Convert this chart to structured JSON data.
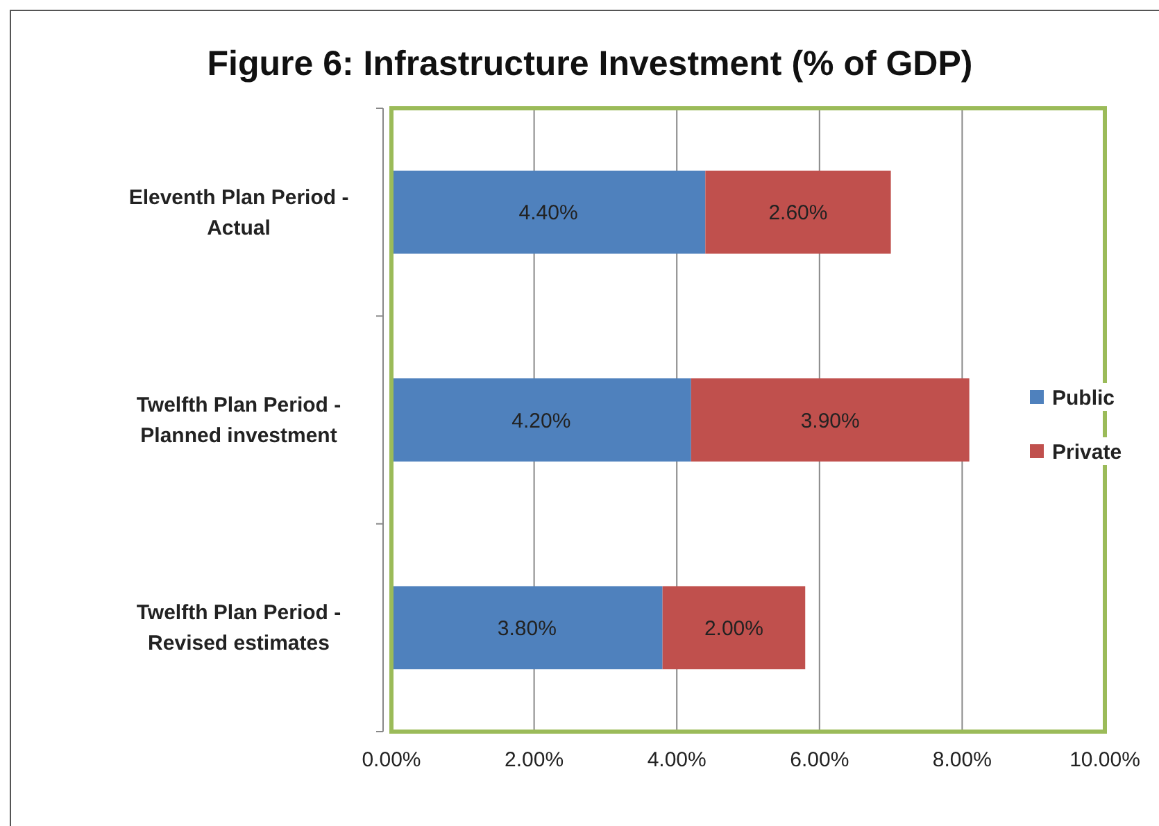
{
  "chart_data": {
    "type": "bar",
    "orientation": "horizontal",
    "stacked": true,
    "title": "Figure 6: Infrastructure  Investment (% of GDP)",
    "categories": [
      "Eleventh Plan Period - Actual",
      "Twelfth Plan Period - Planned investment",
      "Twelfth Plan Period - Revised estimates"
    ],
    "series": [
      {
        "name": "Public",
        "color": "#4f81bd",
        "values": [
          4.4,
          4.2,
          3.8
        ],
        "value_labels": [
          "4.40%",
          "4.20%",
          "3.80%"
        ]
      },
      {
        "name": "Private",
        "color": "#c0504d",
        "values": [
          2.6,
          3.9,
          2.0
        ],
        "value_labels": [
          "2.60%",
          "3.90%",
          "2.00%"
        ]
      }
    ],
    "xlim": [
      0,
      10
    ],
    "xticks": [
      {
        "value": 0,
        "label": "0.00%"
      },
      {
        "value": 2,
        "label": "2.00%"
      },
      {
        "value": 4,
        "label": "4.00%"
      },
      {
        "value": 6,
        "label": "6.00%"
      },
      {
        "value": 8,
        "label": "8.00%"
      },
      {
        "value": 10,
        "label": "10.00%"
      }
    ],
    "grid": "x",
    "legend": "right"
  }
}
